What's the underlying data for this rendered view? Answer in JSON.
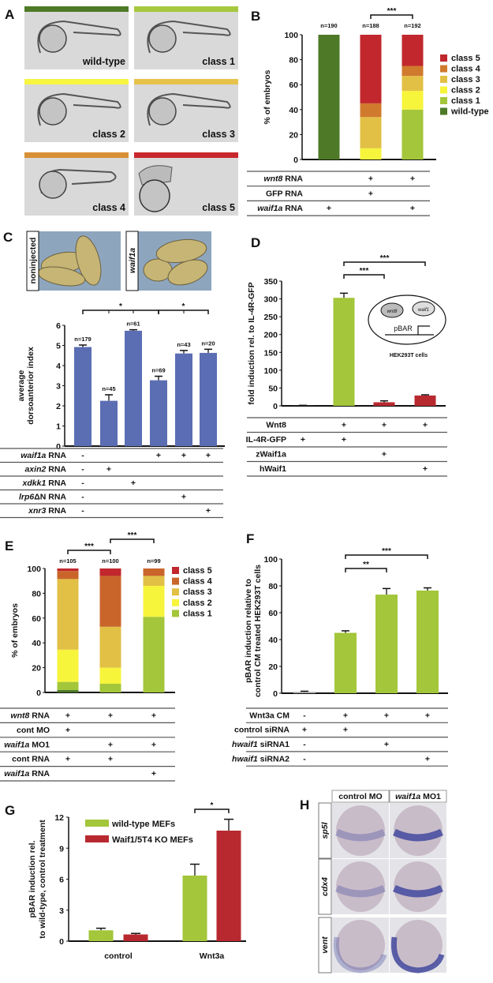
{
  "panel_A": {
    "label": "A",
    "embryos": [
      {
        "name": "wild-type",
        "color": "#4e7a27"
      },
      {
        "name": "class 1",
        "color": "#a6c83e"
      },
      {
        "name": "class 2",
        "color": "#f8f542"
      },
      {
        "name": "class 3",
        "color": "#e6c24a"
      },
      {
        "name": "class 4",
        "color": "#d88f35"
      },
      {
        "name": "class 5",
        "color": "#c8282d"
      }
    ]
  },
  "panel_C_images": {
    "left_label": "noninjected",
    "right_label": "waif1a"
  },
  "panel_D_inset": {
    "gene1": "wnt8",
    "gene2": "waif1",
    "reporter": "pBAR",
    "cells": "HEK293T cells"
  },
  "panel_H": {
    "label": "H",
    "columns": [
      {
        "italic": "",
        "plain": "control MO"
      },
      {
        "italic": "waif1a",
        "plain": " MO1"
      }
    ],
    "rows": [
      "sp5l",
      "cdx4",
      "vent"
    ]
  },
  "chart_data": [
    {
      "id": "B",
      "label": "B",
      "type": "bar",
      "stacked": true,
      "ylabel": [
        "% of embryos"
      ],
      "ylim": [
        0,
        100
      ],
      "yticks": [
        "0",
        "20",
        "40",
        "60",
        "80",
        "100"
      ],
      "n_labels": [
        "n=190",
        "n=188",
        "n=192"
      ],
      "legend": "right",
      "series": [
        {
          "name": "wild-type",
          "color": "#4e7a27",
          "values": [
            100,
            0,
            0
          ]
        },
        {
          "name": "class 1",
          "color": "#a3c63a",
          "values": [
            0,
            0,
            40
          ]
        },
        {
          "name": "class 2",
          "color": "#f7f43c",
          "values": [
            0,
            9,
            15
          ]
        },
        {
          "name": "class 3",
          "color": "#e2c045",
          "values": [
            0,
            25,
            12
          ]
        },
        {
          "name": "class 4",
          "color": "#d07a2e",
          "values": [
            0,
            11,
            8
          ]
        },
        {
          "name": "class 5",
          "color": "#c1272d",
          "values": [
            0,
            55,
            25
          ]
        }
      ],
      "significance": [
        {
          "from": 1,
          "to": 2,
          "label": "***"
        }
      ],
      "conditions": [
        {
          "italic": "wnt8",
          "plain": " RNA",
          "marks": [
            "",
            "+",
            "+"
          ]
        },
        {
          "italic": "",
          "plain": "GFP RNA",
          "marks": [
            "",
            "+",
            ""
          ]
        },
        {
          "italic": "waif1a",
          "plain": " RNA",
          "marks": [
            "+",
            "",
            "+"
          ]
        }
      ]
    },
    {
      "id": "C",
      "label": "C",
      "type": "bar",
      "ylabel": [
        "average",
        "dorsoanterior index"
      ],
      "ylim": [
        0,
        6
      ],
      "yticks": [
        "0",
        "1",
        "2",
        "3",
        "4",
        "5",
        "6"
      ],
      "values": [
        4.92,
        2.25,
        5.73,
        3.27,
        4.6,
        4.63
      ],
      "errors": [
        0.1,
        0.3,
        0.05,
        0.2,
        0.15,
        0.18
      ],
      "colors": [
        "#5b6db3",
        "#5b6db3",
        "#5b6db3",
        "#5b6db3",
        "#5b6db3",
        "#5b6db3"
      ],
      "n_labels": [
        "n=179",
        "n=45",
        "n=61",
        "n=69",
        "n=43",
        "n=20"
      ],
      "significance": [
        {
          "from": 0,
          "to": 3,
          "label": "*"
        },
        {
          "from": 3,
          "to": 5,
          "label": "*"
        }
      ],
      "conditions": [
        {
          "italic": "waif1a",
          "plain": " RNA",
          "marks": [
            "-",
            "",
            "",
            "+",
            "+",
            "+"
          ]
        },
        {
          "italic": "axin2",
          "plain": " RNA",
          "marks": [
            "-",
            "+",
            "",
            "",
            "",
            ""
          ]
        },
        {
          "italic": "xdkk1",
          "plain": " RNA",
          "marks": [
            "-",
            "",
            "+",
            "",
            "",
            ""
          ]
        },
        {
          "italic": "lrp6",
          "plain": "ΔN RNA",
          "marks": [
            "-",
            "",
            "",
            "",
            "+",
            ""
          ]
        },
        {
          "italic": "xnr3",
          "plain": " RNA",
          "marks": [
            "-",
            "",
            "",
            "",
            "",
            "+"
          ]
        }
      ]
    },
    {
      "id": "D",
      "label": "D",
      "type": "bar",
      "ylabel": [
        "fold induction rel. to IL-4R-GFP"
      ],
      "ylim": [
        0,
        350
      ],
      "yticks": [
        "0",
        "50",
        "100",
        "150",
        "200",
        "250",
        "300",
        "350"
      ],
      "values": [
        1,
        303,
        10,
        29
      ],
      "errors": [
        0.5,
        13,
        4,
        2
      ],
      "colors": [
        "#333333",
        "#a3c63a",
        "#b8292f",
        "#b8292f"
      ],
      "significance": [
        {
          "from": 1,
          "to": 2,
          "label": "***"
        },
        {
          "from": 1,
          "to": 3,
          "label": "***"
        }
      ],
      "conditions": [
        {
          "italic": "",
          "plain": "Wnt8",
          "marks": [
            "",
            "+",
            "+",
            "+"
          ]
        },
        {
          "italic": "",
          "plain": "IL-4R-GFP",
          "marks": [
            "+",
            "+",
            "",
            ""
          ]
        },
        {
          "italic": "",
          "plain": "zWaif1a",
          "marks": [
            "",
            "",
            "+",
            ""
          ]
        },
        {
          "italic": "",
          "plain": "hWaif1",
          "marks": [
            "",
            "",
            "",
            "+"
          ]
        }
      ]
    },
    {
      "id": "E",
      "label": "E",
      "type": "bar",
      "stacked": true,
      "ylabel": [
        "% of embryos"
      ],
      "ylim": [
        0,
        100
      ],
      "yticks": [
        "0",
        "20",
        "40",
        "60",
        "80",
        "100"
      ],
      "n_labels": [
        "n=105",
        "n=100",
        "n=99"
      ],
      "legend": "right",
      "series": [
        {
          "color": "#4e7a27",
          "values": [
            2,
            0,
            0
          ]
        },
        {
          "name": "class 1",
          "color": "#a3c63a",
          "values": [
            6.5,
            7,
            61
          ]
        },
        {
          "name": "class 2",
          "color": "#f7f43c",
          "values": [
            26,
            13,
            25
          ]
        },
        {
          "name": "class 3",
          "color": "#e2c045",
          "values": [
            57,
            33,
            8
          ]
        },
        {
          "name": "class 4",
          "color": "#c9652b",
          "values": [
            6.5,
            41,
            6
          ]
        },
        {
          "name": "class 5",
          "color": "#c1272d",
          "values": [
            2,
            6,
            0
          ]
        }
      ],
      "significance": [
        {
          "from": 0,
          "to": 1,
          "label": "***"
        },
        {
          "from": 1,
          "to": 2,
          "label": "***"
        }
      ],
      "conditions": [
        {
          "italic": "wnt8",
          "plain": " RNA",
          "marks": [
            "+",
            "+",
            "+"
          ]
        },
        {
          "italic": "",
          "plain": "cont MO",
          "marks": [
            "+",
            "",
            ""
          ]
        },
        {
          "italic": "waif1a",
          "plain": " MO1",
          "marks": [
            "",
            "+",
            "+"
          ]
        },
        {
          "italic": "",
          "plain": "cont RNA",
          "marks": [
            "+",
            "+",
            ""
          ]
        },
        {
          "italic": "waif1a",
          "plain": " RNA",
          "marks": [
            "",
            "",
            "+"
          ]
        }
      ]
    },
    {
      "id": "F",
      "label": "F",
      "type": "bar",
      "ylabel": [
        "pBAR induction relative to",
        "control CM treated HEK293T cells"
      ],
      "ylim": [
        0,
        100
      ],
      "yticks": [
        "0",
        "20",
        "40",
        "60",
        "80",
        "100"
      ],
      "values": [
        1,
        45,
        73.5,
        76.5
      ],
      "errors": [
        0.5,
        1.5,
        4.5,
        2
      ],
      "colors": [
        "#aaaaaa",
        "#a3c63a",
        "#a3c63a",
        "#a3c63a"
      ],
      "significance": [
        {
          "from": 1,
          "to": 2,
          "label": "**"
        },
        {
          "from": 1,
          "to": 3,
          "label": "***"
        }
      ],
      "conditions": [
        {
          "italic": "",
          "plain": "Wnt3a CM",
          "marks": [
            "-",
            "+",
            "+",
            "+"
          ]
        },
        {
          "italic": "",
          "plain": "control siRNA",
          "marks": [
            "+",
            "+",
            "",
            ""
          ]
        },
        {
          "italic": "hwaif1",
          "plain": " siRNA1",
          "marks": [
            "-",
            "",
            "+",
            ""
          ]
        },
        {
          "italic": "hwaif1",
          "plain": " siRNA2",
          "marks": [
            "-",
            "",
            "",
            "+"
          ]
        }
      ]
    },
    {
      "id": "G",
      "label": "G",
      "type": "bar",
      "grouped": true,
      "ylabel": [
        "pBAR induction rel.",
        "to wild-type, control treatment"
      ],
      "ylim": [
        0,
        12
      ],
      "yticks": [
        "0",
        "3",
        "6",
        "9",
        "12"
      ],
      "categories": [
        "control",
        "Wnt3a"
      ],
      "legend": "top-left",
      "series": [
        {
          "name": "wild-type MEFs",
          "color": "#a3c63a",
          "values": [
            1.05,
            6.35
          ],
          "errors": [
            0.2,
            1.1
          ]
        },
        {
          "name": "Waif1/5T4 KO MEFs",
          "color": "#b8292f",
          "values": [
            0.65,
            10.7
          ],
          "errors": [
            0.1,
            1.1
          ]
        }
      ],
      "significance": [
        {
          "category": 1,
          "label": "*"
        }
      ]
    }
  ]
}
